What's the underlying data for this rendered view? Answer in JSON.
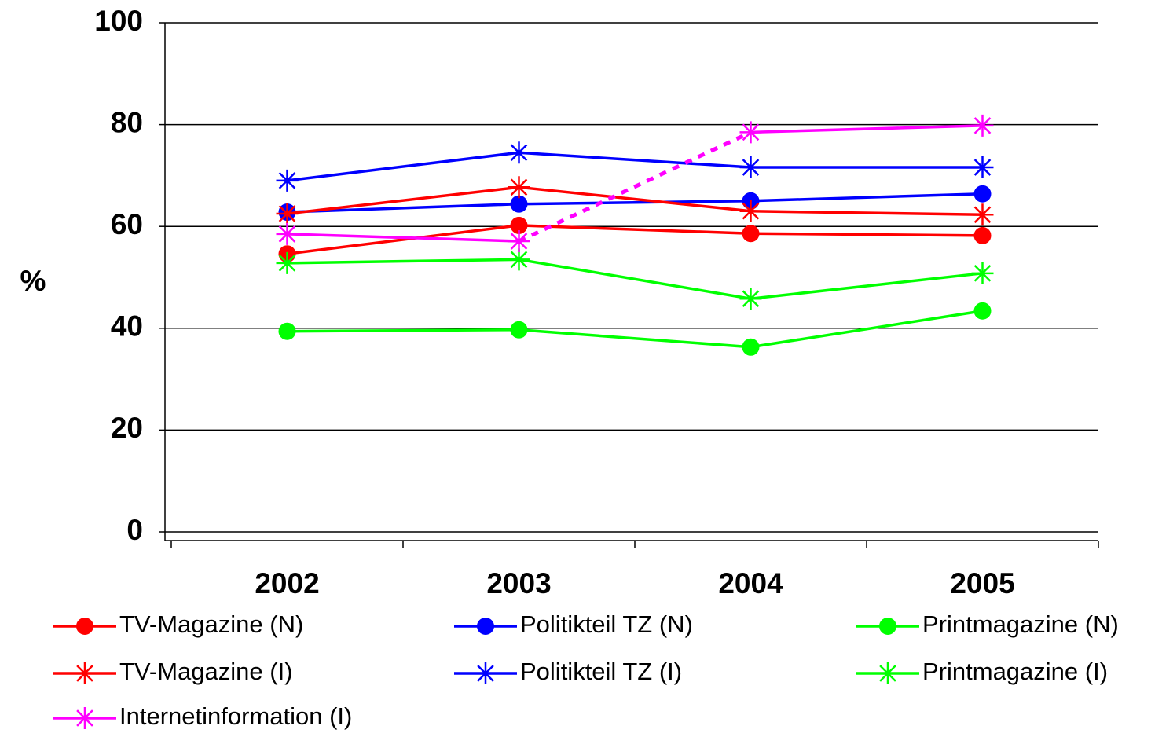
{
  "chart_data": {
    "type": "line",
    "y_label": "%",
    "categories": [
      "2002",
      "2003",
      "2004",
      "2005"
    ],
    "ylim": [
      0,
      100
    ],
    "yticks": [
      0,
      20,
      40,
      60,
      80,
      100
    ],
    "grid": true,
    "series": [
      {
        "name": "TV-Magazine (N)",
        "color": "#ff0000",
        "marker": "circle",
        "values": [
          54.6,
          60.2,
          58.6,
          58.2
        ]
      },
      {
        "name": "Politikteil TZ (N)",
        "color": "#0000ff",
        "marker": "circle",
        "values": [
          62.8,
          64.4,
          65.0,
          66.4
        ]
      },
      {
        "name": "Printmagazine (N)",
        "color": "#00ff00",
        "marker": "circle",
        "values": [
          39.4,
          39.7,
          36.3,
          43.4
        ]
      },
      {
        "name": "TV-Magazine (I)",
        "color": "#ff0000",
        "marker": "star",
        "values": [
          62.5,
          67.7,
          63.0,
          62.3
        ]
      },
      {
        "name": "Politikteil TZ (I)",
        "color": "#0000ff",
        "marker": "star",
        "values": [
          69.0,
          74.5,
          71.6,
          71.6
        ]
      },
      {
        "name": "Printmagazine (I)",
        "color": "#00ff00",
        "marker": "star",
        "values": [
          52.8,
          53.5,
          45.8,
          50.8
        ]
      },
      {
        "name": "Internetinformation (I)",
        "color": "#ff00ff",
        "marker": "star",
        "values": [
          58.5,
          57.1,
          78.5,
          79.8
        ],
        "segment_styles": [
          "solid",
          "dotted",
          "solid"
        ]
      }
    ]
  }
}
